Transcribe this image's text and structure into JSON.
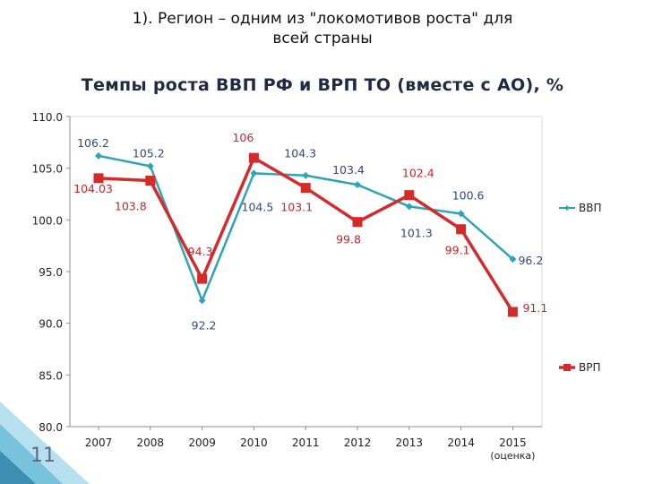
{
  "heading": {
    "line1": "1). Регион – одним из \"локомотивов роста\" для",
    "line2": "всей страны"
  },
  "slide_number": "11",
  "chart_data": {
    "type": "line",
    "title": "Темпы роста ВВП РФ и ВРП ТО (вместе с АО), %",
    "categories": [
      "2007",
      "2008",
      "2009",
      "2010",
      "2011",
      "2012",
      "2013",
      "2014",
      "2015"
    ],
    "category_notes": [
      "",
      "",
      "",
      "",
      "",
      "",
      "",
      "",
      "(оценка)"
    ],
    "ylim": [
      80,
      110
    ],
    "yticks": [
      "80.0",
      "85.0",
      "90.0",
      "95.0",
      "100.0",
      "105.0",
      "110.0"
    ],
    "ytick_values": [
      80,
      85,
      90,
      95,
      100,
      105,
      110
    ],
    "grid": false,
    "legend": "right",
    "series": [
      {
        "name": "ВВП",
        "color": "#2fa3b8",
        "marker": "diamond",
        "values": [
          106.2,
          105.2,
          92.2,
          104.5,
          104.3,
          103.4,
          101.3,
          100.6,
          96.2
        ],
        "labels": [
          "106.2",
          "105.2",
          "92.2",
          "104.5",
          "104.3",
          "103.4",
          "101.3",
          "100.6",
          "96.2"
        ]
      },
      {
        "name": "ВРП",
        "color": "#d42a2a",
        "marker": "square",
        "values": [
          104.03,
          103.8,
          94.3,
          106,
          103.1,
          99.8,
          102.4,
          99.1,
          91.1
        ],
        "labels": [
          "104.03",
          "103.8",
          "94.3",
          "106",
          "103.1",
          "99.8",
          "102.4",
          "99.1",
          "91.1"
        ]
      }
    ]
  }
}
